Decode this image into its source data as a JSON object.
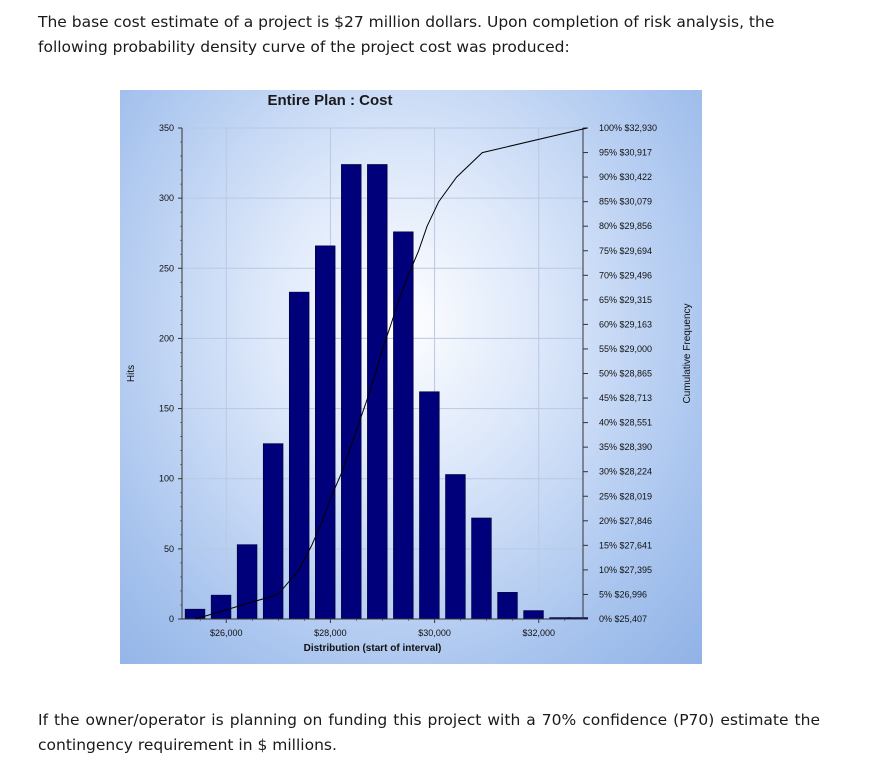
{
  "intro_text": "The base cost estimate of a project is $27 million dollars. Upon completion of risk analysis, the following probability density curve of the project cost was produced:",
  "question_text": "If the owner/operator is planning on funding this project with a 70% confidence (P70) estimate the contingency requirement in $ millions.",
  "chart_data": {
    "type": "bar",
    "title": "Entire Plan : Cost",
    "xlabel": "Distribution (start of interval)",
    "ylabel": "Hits",
    "y2label": "Cumulative Frequency",
    "xlim": [
      25150,
      32850
    ],
    "ylim": [
      0,
      350
    ],
    "yticks": [
      0,
      50,
      100,
      150,
      200,
      250,
      300,
      350
    ],
    "xticks": [
      {
        "value": 26000,
        "label": "$26,000"
      },
      {
        "value": 28000,
        "label": "$28,000"
      },
      {
        "value": 30000,
        "label": "$30,000"
      },
      {
        "value": 32000,
        "label": "$32,000"
      }
    ],
    "bar_width": 380,
    "bars": [
      {
        "x": 25400,
        "value": 7
      },
      {
        "x": 25900,
        "value": 17
      },
      {
        "x": 26400,
        "value": 53
      },
      {
        "x": 26900,
        "value": 125
      },
      {
        "x": 27400,
        "value": 233
      },
      {
        "x": 27900,
        "value": 266
      },
      {
        "x": 28400,
        "value": 324
      },
      {
        "x": 28900,
        "value": 324
      },
      {
        "x": 29400,
        "value": 276
      },
      {
        "x": 29900,
        "value": 162
      },
      {
        "x": 30400,
        "value": 103
      },
      {
        "x": 30900,
        "value": 72
      },
      {
        "x": 31400,
        "value": 19
      },
      {
        "x": 31900,
        "value": 6
      },
      {
        "x": 32400,
        "value": 1
      },
      {
        "x": 32750,
        "value": 1
      }
    ],
    "cumulative": [
      {
        "percent": 0,
        "value": 25407,
        "label": "$25,407"
      },
      {
        "percent": 5,
        "value": 26996,
        "label": "$26,996"
      },
      {
        "percent": 10,
        "value": 27395,
        "label": "$27,395"
      },
      {
        "percent": 15,
        "value": 27641,
        "label": "$27,641"
      },
      {
        "percent": 20,
        "value": 27846,
        "label": "$27,846"
      },
      {
        "percent": 25,
        "value": 28019,
        "label": "$28,019"
      },
      {
        "percent": 30,
        "value": 28224,
        "label": "$28,224"
      },
      {
        "percent": 35,
        "value": 28390,
        "label": "$28,390"
      },
      {
        "percent": 40,
        "value": 28551,
        "label": "$28,551"
      },
      {
        "percent": 45,
        "value": 28713,
        "label": "$28,713"
      },
      {
        "percent": 50,
        "value": 28865,
        "label": "$28,865"
      },
      {
        "percent": 55,
        "value": 29000,
        "label": "$29,000"
      },
      {
        "percent": 60,
        "value": 29163,
        "label": "$29,163"
      },
      {
        "percent": 65,
        "value": 29315,
        "label": "$29,315"
      },
      {
        "percent": 70,
        "value": 29496,
        "label": "$29,496"
      },
      {
        "percent": 75,
        "value": 29694,
        "label": "$29,694"
      },
      {
        "percent": 80,
        "value": 29856,
        "label": "$29,856"
      },
      {
        "percent": 85,
        "value": 30079,
        "label": "$30,079"
      },
      {
        "percent": 90,
        "value": 30422,
        "label": "$30,422"
      },
      {
        "percent": 95,
        "value": 30917,
        "label": "$30,917"
      },
      {
        "percent": 100,
        "value": 32930,
        "label": "$32,930"
      }
    ],
    "bar_color": "#00007a",
    "grid": true,
    "legend": "none"
  }
}
